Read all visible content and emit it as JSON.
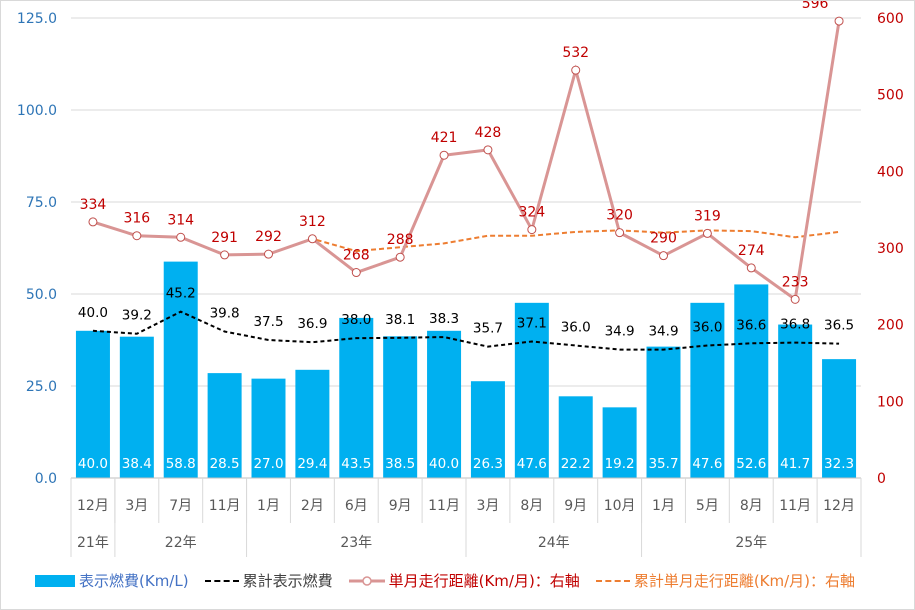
{
  "chart_data": {
    "type": "bar",
    "categories": [
      "12月",
      "3月",
      "7月",
      "11月",
      "1月",
      "2月",
      "6月",
      "9月",
      "11月",
      "3月",
      "8月",
      "9月",
      "10月",
      "1月",
      "5月",
      "8月",
      "11月",
      "12月"
    ],
    "year_groups": [
      {
        "label": "21年",
        "count": 1
      },
      {
        "label": "22年",
        "count": 3
      },
      {
        "label": "23年",
        "count": 5
      },
      {
        "label": "24年",
        "count": 4
      },
      {
        "label": "25年",
        "count": 5
      }
    ],
    "left_axis": {
      "ylim": [
        0,
        125
      ],
      "ticks": [
        "0.0",
        "25.0",
        "50.0",
        "75.0",
        "100.0",
        "125.0"
      ],
      "color": "#2e75b6"
    },
    "right_axis": {
      "ylim": [
        0,
        600
      ],
      "ticks": [
        "0",
        "100",
        "200",
        "300",
        "400",
        "500",
        "600"
      ],
      "color": "#c00000"
    },
    "grid": true,
    "legend_position": "bottom",
    "series": [
      {
        "name": "表示燃費(Km/L)",
        "type": "bar",
        "axis": "left",
        "color": "#00b0f0",
        "legend_color": "#4472c4",
        "values": [
          40.0,
          38.4,
          58.8,
          28.5,
          27.0,
          29.4,
          43.5,
          38.5,
          40.0,
          26.3,
          47.6,
          22.2,
          19.2,
          35.7,
          47.6,
          52.6,
          41.7,
          32.3
        ],
        "labels": [
          "40.0",
          "38.4",
          "58.8",
          "28.5",
          "27.0",
          "29.4",
          "43.5",
          "38.5",
          "40.0",
          "26.3",
          "47.6",
          "22.2",
          "19.2",
          "35.7",
          "47.6",
          "52.6",
          "41.7",
          "32.3"
        ]
      },
      {
        "name": "累計表示燃費",
        "type": "line",
        "style": "dashed",
        "axis": "left",
        "color": "#000000",
        "legend_color": "#404040",
        "values": [
          40.0,
          39.2,
          45.2,
          39.8,
          37.5,
          36.9,
          38.0,
          38.1,
          38.3,
          35.7,
          37.1,
          36.0,
          34.9,
          34.9,
          36.0,
          36.6,
          36.8,
          36.5
        ],
        "labels": [
          "40.0",
          "39.2",
          "45.2",
          "39.8",
          "37.5",
          "36.9",
          "38.0",
          "38.1",
          "38.3",
          "35.7",
          "37.1",
          "36.0",
          "34.9",
          "34.9",
          "36.0",
          "36.6",
          "36.8",
          "36.5"
        ]
      },
      {
        "name": "単月走行距離(Km/月)：右軸",
        "type": "line",
        "style": "solid-marker",
        "axis": "right",
        "color": "#d99594",
        "legend_color": "#c00000",
        "values": [
          334,
          316,
          314,
          291,
          292,
          312,
          268,
          288,
          421,
          428,
          324,
          532,
          320,
          290,
          319,
          274,
          233,
          596
        ],
        "labels": [
          "334",
          "316",
          "314",
          "291",
          "292",
          "312",
          "268",
          "288",
          "421",
          "428",
          "324",
          "532",
          "320",
          "290",
          "319",
          "274",
          "233",
          "596"
        ]
      },
      {
        "name": "累計単月走行距離(Km/月)：右軸",
        "type": "line",
        "style": "dashed",
        "axis": "right",
        "color": "#ed7d31",
        "legend_color": "#ed7d31",
        "values": [
          334,
          316,
          314,
          291,
          292,
          312,
          296,
          301,
          306,
          316,
          316,
          321,
          323,
          320,
          323,
          322,
          314,
          321
        ]
      }
    ]
  }
}
